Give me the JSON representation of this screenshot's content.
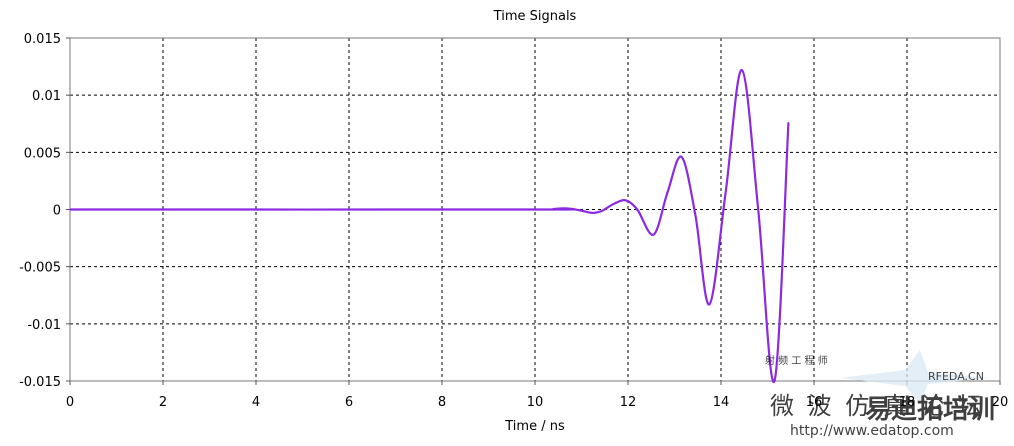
{
  "chart_data": {
    "type": "line",
    "title": "Time Signals",
    "xlabel": "Time / ns",
    "ylabel": "",
    "xlim": [
      0,
      20
    ],
    "ylim": [
      -0.015,
      0.015
    ],
    "x_ticks": [
      0,
      2,
      4,
      6,
      8,
      10,
      12,
      14,
      16,
      18,
      20
    ],
    "x_tick_labels": [
      "0",
      "2",
      "4",
      "6",
      "8",
      "10",
      "12",
      "14",
      "16",
      "18",
      "20"
    ],
    "y_ticks": [
      0.015,
      0.01,
      0.005,
      0,
      -0.005,
      -0.01,
      -0.015
    ],
    "y_tick_labels": [
      "0.015",
      "0.01",
      "0.005",
      "0",
      "-0.005",
      "-0.01",
      "-0.015"
    ],
    "grid": true,
    "grid_style": "dashed",
    "series": [
      {
        "color": "#8a2be2",
        "x": [
          0,
          10.0,
          10.4,
          10.6,
          10.8,
          11.0,
          11.25,
          11.45,
          11.7,
          11.95,
          12.2,
          12.55,
          12.85,
          13.15,
          13.45,
          13.75,
          14.1,
          14.45,
          14.8,
          15.15,
          15.45
        ],
        "y": [
          0,
          0,
          5e-05,
          0.0001,
          5e-05,
          -0.0001,
          -0.0003,
          -0.0001,
          0.0005,
          0.0008,
          0.0,
          -0.0022,
          0.0015,
          0.0046,
          -0.0005,
          -0.0083,
          0.0015,
          0.0122,
          0.0,
          -0.015,
          0.0076
        ]
      }
    ]
  },
  "watermark": {
    "lines": [
      "RFEDA.CN",
      "射 频 工 程 师",
      "微 波 仿 真 论 坛",
      "易迪拓培训",
      "http://www.edatop.com"
    ],
    "colors": {
      "brand": "#cc0000",
      "faint": "#9ec3e6",
      "plot_border": "#7a7a7a"
    }
  }
}
